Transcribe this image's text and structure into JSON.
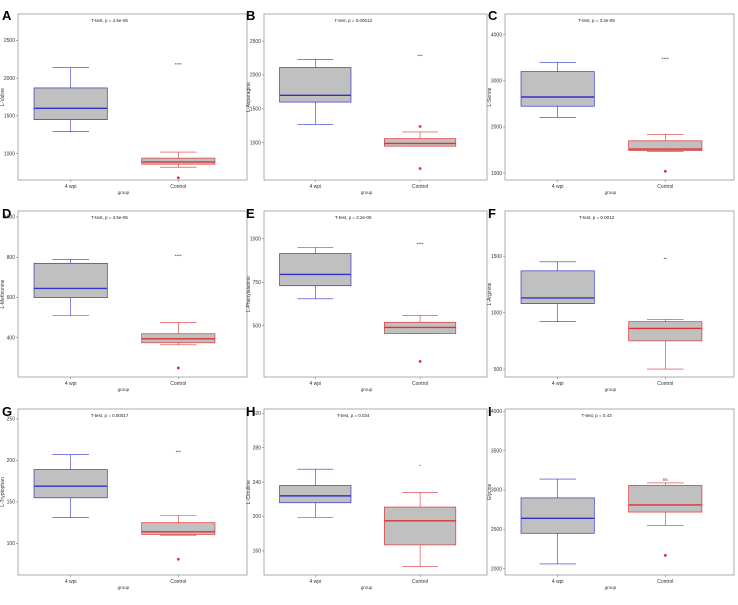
{
  "chart_data": [
    {
      "letter": "A",
      "type": "box",
      "title": "T-test, p = 4.5e-05",
      "ylabel": "L-Valine",
      "xlabel": "group",
      "categories": [
        "4 wpi",
        "Control"
      ],
      "ylim": [
        650,
        2850
      ],
      "yticks": [
        1000,
        1500,
        2000,
        2500
      ],
      "series": [
        {
          "name": "4 wpi",
          "min": 1290,
          "q1": 1450,
          "median": 1600,
          "q3": 1870,
          "max": 2140,
          "outliers": [],
          "color": "#3333cc"
        },
        {
          "name": "Control",
          "min": 820,
          "q1": 860,
          "median": 890,
          "q3": 940,
          "max": 1020,
          "outliers": [
            680
          ],
          "color": "#dd3333"
        }
      ],
      "sig": "****",
      "sig_y": 2150
    },
    {
      "letter": "B",
      "type": "box",
      "title": "T-test, p = 0.00013",
      "ylabel": "L-Asparagine",
      "xlabel": "group",
      "categories": [
        "4 wpi",
        "Control"
      ],
      "ylim": [
        450,
        2900
      ],
      "yticks": [
        1000,
        1500,
        2000,
        2500
      ],
      "series": [
        {
          "name": "4 wpi",
          "min": 1270,
          "q1": 1600,
          "median": 1700,
          "q3": 2110,
          "max": 2230,
          "outliers": [],
          "color": "#3333cc"
        },
        {
          "name": "Control",
          "min": 950,
          "q1": 950,
          "median": 990,
          "q3": 1060,
          "max": 1160,
          "outliers": [
            1240,
            620
          ],
          "color": "#dd3333"
        }
      ],
      "sig": "***",
      "sig_y": 2240
    },
    {
      "letter": "C",
      "type": "box",
      "title": "T-test, p = 3.3e-05",
      "ylabel": "L-Serine",
      "xlabel": "group",
      "categories": [
        "4 wpi",
        "Control"
      ],
      "ylim": [
        850,
        4450
      ],
      "yticks": [
        1000,
        2000,
        3000,
        4000
      ],
      "series": [
        {
          "name": "4 wpi",
          "min": 2210,
          "q1": 2450,
          "median": 2650,
          "q3": 3200,
          "max": 3400,
          "outliers": [],
          "color": "#3333cc"
        },
        {
          "name": "Control",
          "min": 1470,
          "q1": 1490,
          "median": 1520,
          "q3": 1700,
          "max": 1840,
          "outliers": [
            1040
          ],
          "color": "#dd3333"
        }
      ],
      "sig": "****",
      "sig_y": 3420
    },
    {
      "letter": "D",
      "type": "box",
      "title": "T-test, p = 3.5e-05",
      "ylabel": "L-Methionine",
      "xlabel": "group",
      "categories": [
        "4 wpi",
        "Control"
      ],
      "ylim": [
        205,
        1030
      ],
      "yticks": [
        400,
        600,
        800,
        1000
      ],
      "series": [
        {
          "name": "4 wpi",
          "min": 510,
          "q1": 600,
          "median": 645,
          "q3": 770,
          "max": 790,
          "outliers": [],
          "color": "#3333cc"
        },
        {
          "name": "Control",
          "min": 365,
          "q1": 375,
          "median": 395,
          "q3": 420,
          "max": 475,
          "outliers": [
            250
          ],
          "color": "#dd3333"
        }
      ],
      "sig": "****",
      "sig_y": 795
    },
    {
      "letter": "E",
      "type": "box",
      "title": "T-test, p = 2.2e-05",
      "ylabel": "L-Phenylalanine",
      "xlabel": "group",
      "categories": [
        "4 wpi",
        "Control"
      ],
      "ylim": [
        205,
        1160
      ],
      "yticks": [
        500,
        750,
        1000
      ],
      "series": [
        {
          "name": "4 wpi",
          "min": 655,
          "q1": 730,
          "median": 795,
          "q3": 915,
          "max": 950,
          "outliers": [],
          "color": "#3333cc"
        },
        {
          "name": "Control",
          "min": 455,
          "q1": 455,
          "median": 490,
          "q3": 520,
          "max": 560,
          "outliers": [
            295
          ],
          "color": "#dd3333"
        }
      ],
      "sig": "****",
      "sig_y": 955
    },
    {
      "letter": "F",
      "type": "box",
      "title": "T-test, p = 0.0012",
      "ylabel": "L-Arginine",
      "xlabel": "group",
      "categories": [
        "4 wpi",
        "Control"
      ],
      "ylim": [
        430,
        1900
      ],
      "yticks": [
        500,
        1000,
        1500
      ],
      "series": [
        {
          "name": "4 wpi",
          "min": 920,
          "q1": 1080,
          "median": 1130,
          "q3": 1370,
          "max": 1450,
          "outliers": [],
          "color": "#3333cc"
        },
        {
          "name": "Control",
          "min": 500,
          "q1": 750,
          "median": 860,
          "q3": 920,
          "max": 940,
          "outliers": [],
          "color": "#dd3333"
        }
      ],
      "sig": "**",
      "sig_y": 1455
    },
    {
      "letter": "G",
      "type": "box",
      "title": "T-test, p = 0.00017",
      "ylabel": "L-Tryptophan",
      "xlabel": "group",
      "categories": [
        "4 wpi",
        "Control"
      ],
      "ylim": [
        62,
        262
      ],
      "yticks": [
        100,
        150,
        200,
        250
      ],
      "series": [
        {
          "name": "4 wpi",
          "min": 131,
          "q1": 155,
          "median": 169,
          "q3": 189,
          "max": 207,
          "outliers": [],
          "color": "#3333cc"
        },
        {
          "name": "Control",
          "min": 110,
          "q1": 111,
          "median": 114,
          "q3": 125,
          "max": 134,
          "outliers": [
            81
          ],
          "color": "#dd3333"
        }
      ],
      "sig": "***",
      "sig_y": 207
    },
    {
      "letter": "H",
      "type": "box",
      "title": "T-test, p = 0.024",
      "ylabel": "L-Citrulline",
      "xlabel": "group",
      "categories": [
        "4 wpi",
        "Control"
      ],
      "ylim": [
        132,
        325
      ],
      "yticks": [
        160,
        200,
        240,
        280,
        320
      ],
      "series": [
        {
          "name": "4 wpi",
          "min": 199,
          "q1": 216,
          "median": 224,
          "q3": 236,
          "max": 255,
          "outliers": [],
          "color": "#3333cc"
        },
        {
          "name": "Control",
          "min": 142,
          "q1": 167,
          "median": 195,
          "q3": 211,
          "max": 228,
          "outliers": [],
          "color": "#dd3333"
        }
      ],
      "sig": "*",
      "sig_y": 256
    },
    {
      "letter": "I",
      "type": "box",
      "title": "T-test, p = 0.43",
      "ylabel": "Glycine",
      "xlabel": "group",
      "categories": [
        "4 wpi",
        "Control"
      ],
      "ylim": [
        1920,
        4030
      ],
      "yticks": [
        2000,
        2500,
        3000,
        3500,
        4000
      ],
      "series": [
        {
          "name": "4 wpi",
          "min": 2060,
          "q1": 2450,
          "median": 2640,
          "q3": 2900,
          "max": 3140,
          "outliers": [],
          "color": "#3333cc"
        },
        {
          "name": "Control",
          "min": 2550,
          "q1": 2720,
          "median": 2810,
          "q3": 3060,
          "max": 3090,
          "outliers": [
            2170
          ],
          "color": "#dd3333"
        }
      ],
      "sig": "ns",
      "sig_y": 3100
    }
  ]
}
